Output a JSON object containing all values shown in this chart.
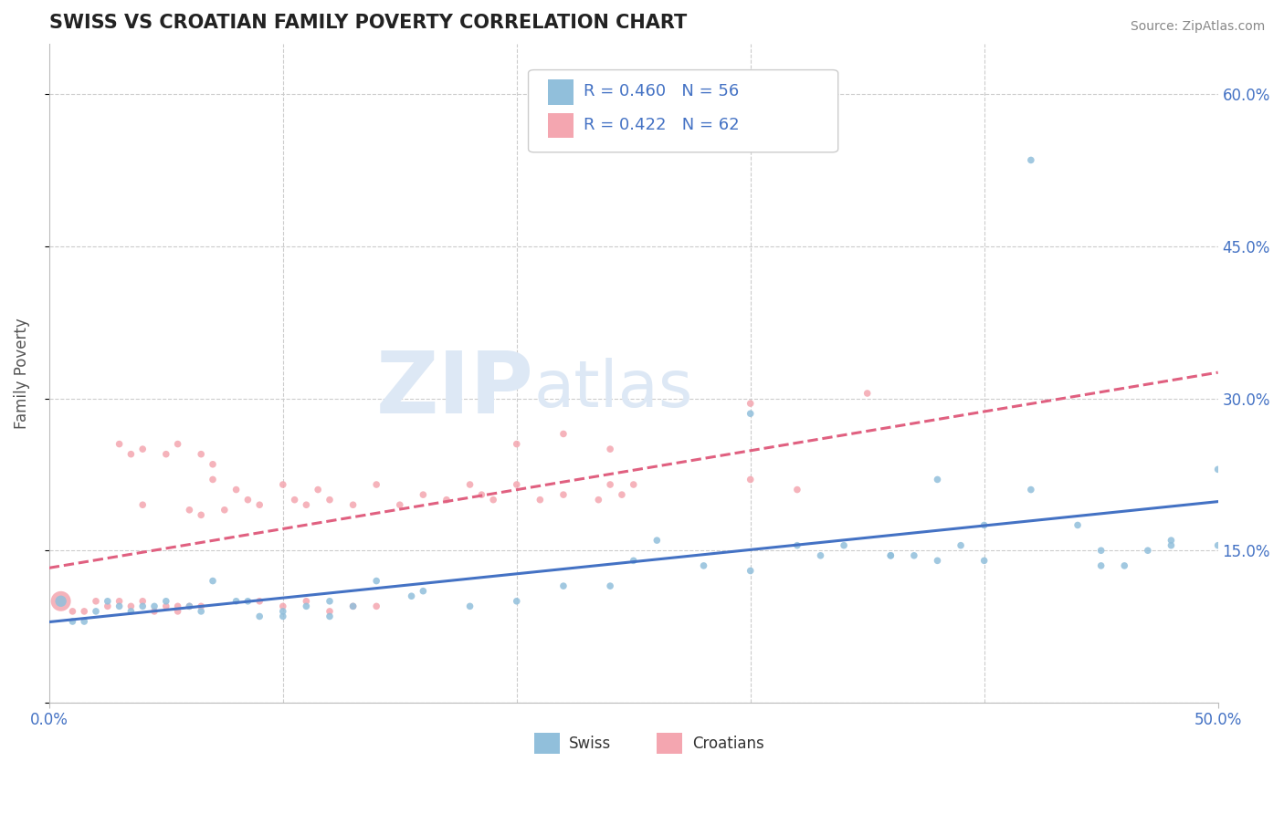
{
  "title": "SWISS VS CROATIAN FAMILY POVERTY CORRELATION CHART",
  "source": "Source: ZipAtlas.com",
  "ylabel": "Family Poverty",
  "xlim": [
    0.0,
    0.5
  ],
  "ylim": [
    0.0,
    0.65
  ],
  "yticks": [
    0.0,
    0.15,
    0.3,
    0.45,
    0.6
  ],
  "yticklabels": [
    "",
    "15.0%",
    "30.0%",
    "45.0%",
    "60.0%"
  ],
  "swiss_R": 0.46,
  "swiss_N": 56,
  "croatian_R": 0.422,
  "croatian_N": 62,
  "swiss_color": "#91bfdb",
  "croatian_color": "#f4a6b0",
  "swiss_line_color": "#4472c4",
  "croatian_line_color": "#e06080",
  "background_color": "#ffffff",
  "grid_color": "#cccccc",
  "watermark_zip": "ZIP",
  "watermark_atlas": "atlas",
  "legend_swiss_label": "Swiss",
  "legend_croatian_label": "Croatians",
  "swiss_points": [
    [
      0.005,
      0.1
    ],
    [
      0.01,
      0.08
    ],
    [
      0.015,
      0.08
    ],
    [
      0.02,
      0.09
    ],
    [
      0.025,
      0.1
    ],
    [
      0.03,
      0.095
    ],
    [
      0.035,
      0.09
    ],
    [
      0.04,
      0.095
    ],
    [
      0.045,
      0.095
    ],
    [
      0.05,
      0.1
    ],
    [
      0.06,
      0.095
    ],
    [
      0.065,
      0.09
    ],
    [
      0.07,
      0.12
    ],
    [
      0.08,
      0.1
    ],
    [
      0.085,
      0.1
    ],
    [
      0.09,
      0.085
    ],
    [
      0.1,
      0.085
    ],
    [
      0.11,
      0.095
    ],
    [
      0.12,
      0.1
    ],
    [
      0.13,
      0.095
    ],
    [
      0.14,
      0.12
    ],
    [
      0.155,
      0.105
    ],
    [
      0.16,
      0.11
    ],
    [
      0.18,
      0.095
    ],
    [
      0.2,
      0.1
    ],
    [
      0.22,
      0.115
    ],
    [
      0.24,
      0.115
    ],
    [
      0.25,
      0.14
    ],
    [
      0.26,
      0.16
    ],
    [
      0.28,
      0.135
    ],
    [
      0.3,
      0.13
    ],
    [
      0.32,
      0.155
    ],
    [
      0.34,
      0.155
    ],
    [
      0.36,
      0.145
    ],
    [
      0.37,
      0.145
    ],
    [
      0.38,
      0.14
    ],
    [
      0.39,
      0.155
    ],
    [
      0.4,
      0.175
    ],
    [
      0.42,
      0.21
    ],
    [
      0.44,
      0.175
    ],
    [
      0.45,
      0.135
    ],
    [
      0.46,
      0.135
    ],
    [
      0.47,
      0.15
    ],
    [
      0.48,
      0.16
    ],
    [
      0.3,
      0.285
    ],
    [
      0.38,
      0.22
    ],
    [
      0.45,
      0.15
    ],
    [
      0.48,
      0.155
    ],
    [
      0.33,
      0.145
    ],
    [
      0.1,
      0.09
    ],
    [
      0.12,
      0.085
    ],
    [
      0.42,
      0.535
    ],
    [
      0.4,
      0.14
    ],
    [
      0.5,
      0.23
    ],
    [
      0.5,
      0.155
    ],
    [
      0.36,
      0.145
    ]
  ],
  "swiss_bubble_sizes": [
    80,
    30,
    30,
    30,
    30,
    30,
    30,
    30,
    30,
    30,
    30,
    30,
    30,
    30,
    30,
    30,
    30,
    30,
    30,
    30,
    30,
    30,
    30,
    30,
    30,
    30,
    30,
    30,
    30,
    30,
    30,
    30,
    30,
    30,
    30,
    30,
    30,
    30,
    30,
    30,
    30,
    30,
    30,
    30,
    30,
    30,
    30,
    30,
    30,
    30,
    30,
    30,
    30,
    30,
    30,
    30
  ],
  "croatian_points": [
    [
      0.005,
      0.1
    ],
    [
      0.01,
      0.09
    ],
    [
      0.015,
      0.09
    ],
    [
      0.02,
      0.1
    ],
    [
      0.025,
      0.095
    ],
    [
      0.03,
      0.1
    ],
    [
      0.035,
      0.095
    ],
    [
      0.04,
      0.1
    ],
    [
      0.045,
      0.09
    ],
    [
      0.05,
      0.095
    ],
    [
      0.055,
      0.09
    ],
    [
      0.06,
      0.095
    ],
    [
      0.065,
      0.095
    ],
    [
      0.07,
      0.22
    ],
    [
      0.075,
      0.19
    ],
    [
      0.08,
      0.21
    ],
    [
      0.085,
      0.2
    ],
    [
      0.09,
      0.195
    ],
    [
      0.1,
      0.215
    ],
    [
      0.105,
      0.2
    ],
    [
      0.11,
      0.195
    ],
    [
      0.115,
      0.21
    ],
    [
      0.12,
      0.2
    ],
    [
      0.13,
      0.195
    ],
    [
      0.14,
      0.215
    ],
    [
      0.15,
      0.195
    ],
    [
      0.16,
      0.205
    ],
    [
      0.17,
      0.2
    ],
    [
      0.18,
      0.215
    ],
    [
      0.185,
      0.205
    ],
    [
      0.19,
      0.2
    ],
    [
      0.2,
      0.215
    ],
    [
      0.21,
      0.2
    ],
    [
      0.22,
      0.205
    ],
    [
      0.235,
      0.2
    ],
    [
      0.24,
      0.215
    ],
    [
      0.245,
      0.205
    ],
    [
      0.25,
      0.215
    ],
    [
      0.3,
      0.22
    ],
    [
      0.32,
      0.21
    ],
    [
      0.05,
      0.245
    ],
    [
      0.055,
      0.255
    ],
    [
      0.2,
      0.255
    ],
    [
      0.22,
      0.265
    ],
    [
      0.24,
      0.25
    ],
    [
      0.3,
      0.295
    ],
    [
      0.35,
      0.305
    ],
    [
      0.06,
      0.19
    ],
    [
      0.065,
      0.185
    ],
    [
      0.07,
      0.235
    ],
    [
      0.09,
      0.1
    ],
    [
      0.1,
      0.095
    ],
    [
      0.11,
      0.1
    ],
    [
      0.12,
      0.09
    ],
    [
      0.13,
      0.095
    ],
    [
      0.14,
      0.095
    ],
    [
      0.03,
      0.255
    ],
    [
      0.035,
      0.245
    ],
    [
      0.04,
      0.25
    ],
    [
      0.065,
      0.245
    ],
    [
      0.04,
      0.195
    ],
    [
      0.055,
      0.095
    ]
  ],
  "croatian_bubble_sizes": [
    250,
    30,
    30,
    30,
    30,
    30,
    30,
    30,
    30,
    30,
    30,
    30,
    30,
    30,
    30,
    30,
    30,
    30,
    30,
    30,
    30,
    30,
    30,
    30,
    30,
    30,
    30,
    30,
    30,
    30,
    30,
    30,
    30,
    30,
    30,
    30,
    30,
    30,
    30,
    30,
    30,
    30,
    30,
    30,
    30,
    30,
    30,
    30,
    30,
    30,
    30,
    30,
    30,
    30,
    30,
    30,
    30,
    30,
    30,
    30,
    30,
    30
  ]
}
